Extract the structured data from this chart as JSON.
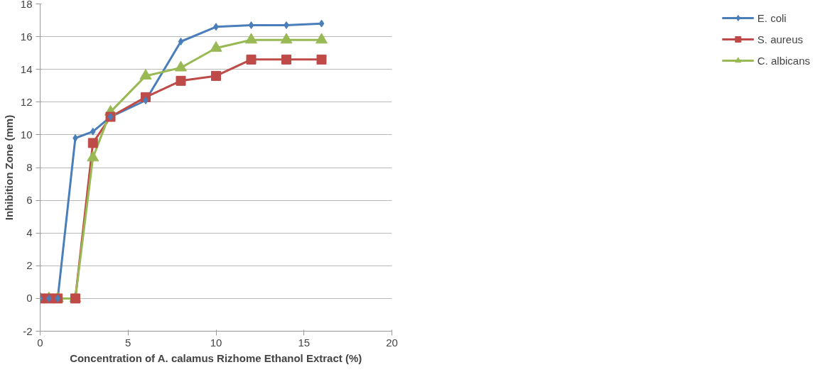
{
  "chart_data": {
    "type": "line",
    "xlabel": "Concentration of A. calamus Rizhome Ethanol Extract (%)",
    "ylabel": "Inhibition Zone (mm)",
    "x": [
      0,
      0.5,
      1,
      2,
      3,
      4,
      6,
      8,
      10,
      12,
      14,
      16
    ],
    "series": [
      {
        "name": "E. coli",
        "color": "#4a7ebb",
        "marker": "diamond",
        "values": [
          0,
          0,
          0,
          9.8,
          10.2,
          11.1,
          12.1,
          15.7,
          16.6,
          16.7,
          16.7,
          16.8
        ]
      },
      {
        "name": "S. aureus",
        "color": "#be4b48",
        "marker": "square",
        "values": [
          0,
          0,
          0,
          0,
          9.5,
          11.1,
          12.3,
          13.3,
          13.6,
          14.6,
          14.6,
          14.6
        ]
      },
      {
        "name": "C. albicans",
        "color": "#98b954",
        "marker": "triangle",
        "values": [
          0,
          0,
          0,
          0,
          8.6,
          11.4,
          13.6,
          14.1,
          15.3,
          15.8,
          15.8,
          15.8
        ]
      }
    ],
    "xlim": [
      0,
      20
    ],
    "xticks": [
      0,
      5,
      10,
      15,
      20
    ],
    "ylim": [
      -2,
      18
    ],
    "yticks": [
      -2,
      0,
      2,
      4,
      6,
      8,
      10,
      12,
      14,
      16,
      18
    ],
    "grid": "y",
    "legend": "right",
    "line_style": "solid"
  }
}
